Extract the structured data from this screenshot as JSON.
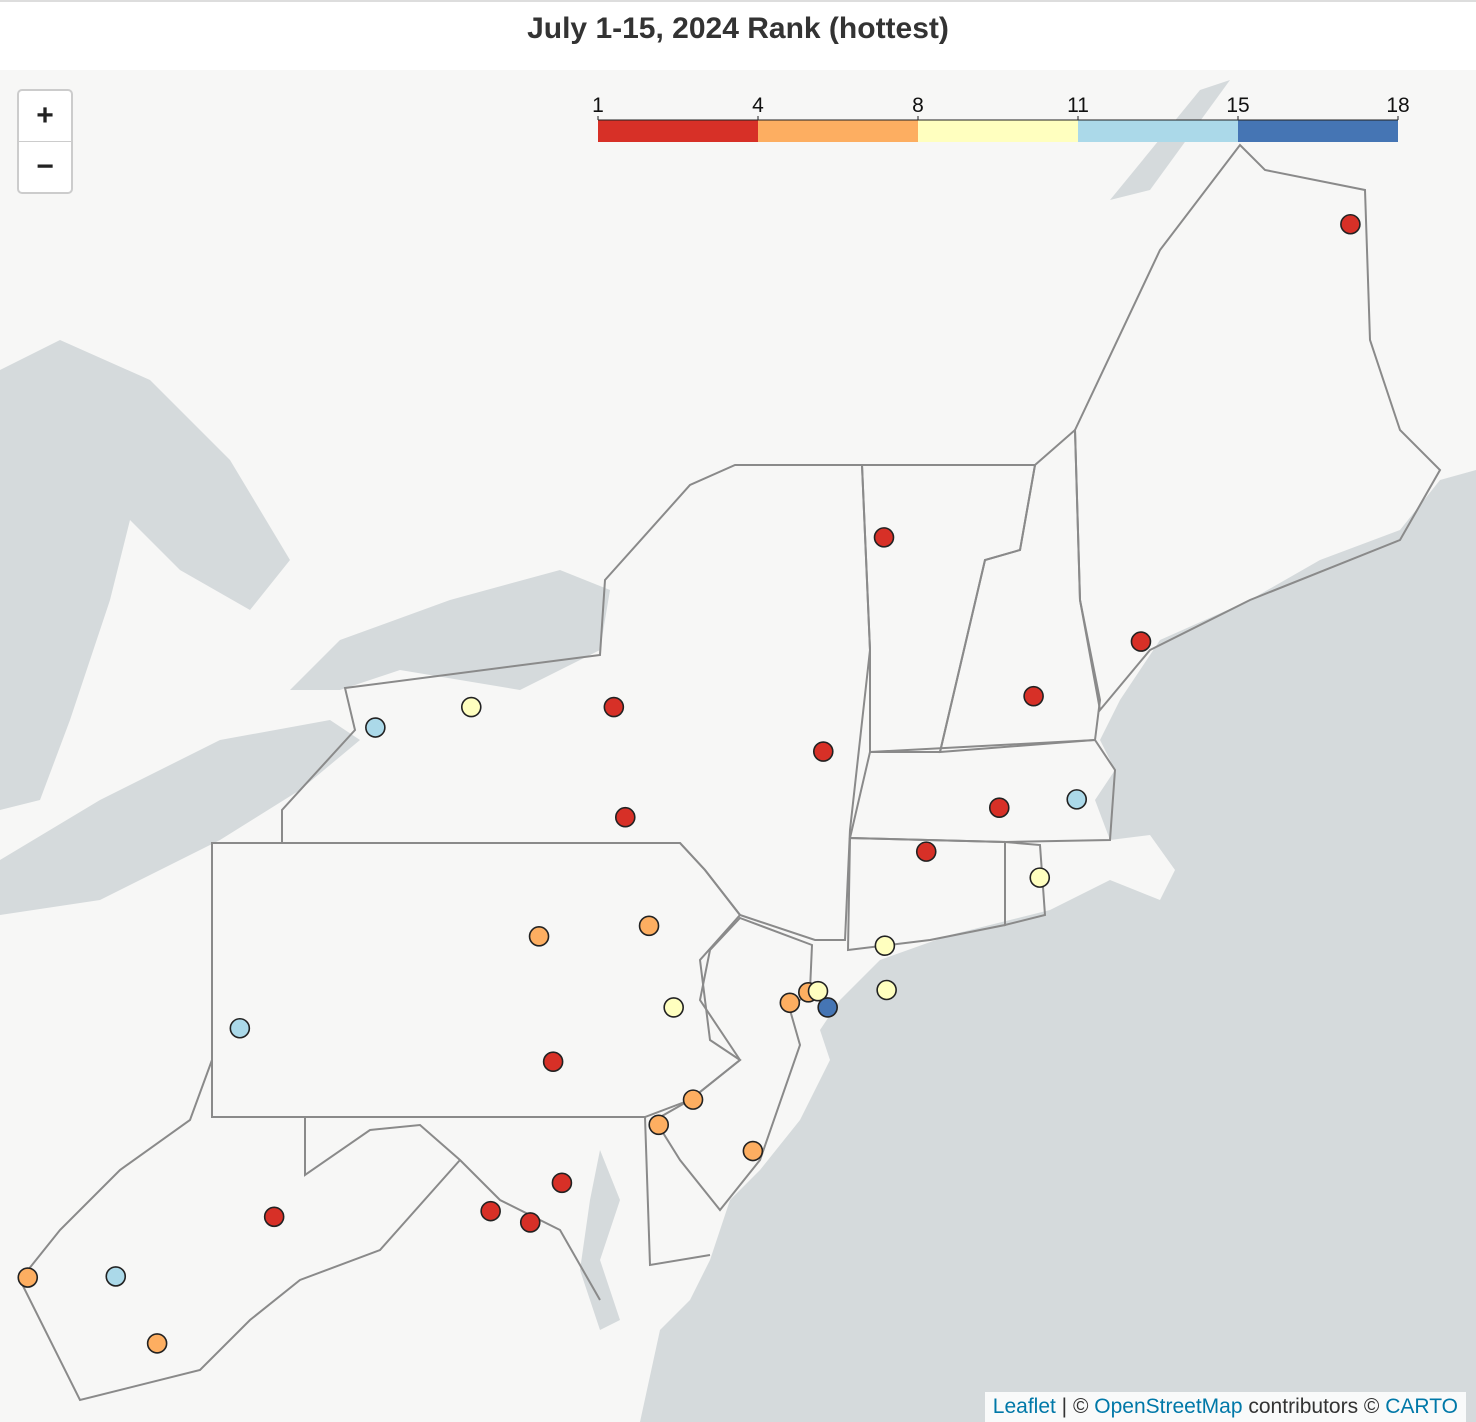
{
  "title": "July 1-15, 2024 Rank (hottest)",
  "zoom_controls": [
    "+",
    "−"
  ],
  "legend": {
    "ticks": [
      1,
      4,
      8,
      11,
      15,
      18
    ],
    "colors": [
      "#d73027",
      "#fdae61",
      "#ffffbf",
      "#abd9e9",
      "#4575b4"
    ]
  },
  "stations": [
    {
      "lon": -67.92,
      "lat": 47.04,
      "rank": 2
    },
    {
      "lon": -73.22,
      "lat": 44.56,
      "rank": 2
    },
    {
      "lon": -70.3,
      "lat": 43.71,
      "rank": 2
    },
    {
      "lon": -71.52,
      "lat": 43.26,
      "rank": 2
    },
    {
      "lon": -73.91,
      "lat": 42.8,
      "rank": 2
    },
    {
      "lon": -71.03,
      "lat": 42.4,
      "rank": 13
    },
    {
      "lon": -71.91,
      "lat": 42.33,
      "rank": 2
    },
    {
      "lon": -72.74,
      "lat": 41.96,
      "rank": 2
    },
    {
      "lon": -71.45,
      "lat": 41.74,
      "rank": 9
    },
    {
      "lon": -73.21,
      "lat": 41.16,
      "rank": 9
    },
    {
      "lon": -73.19,
      "lat": 40.78,
      "rank": 9
    },
    {
      "lon": -76.29,
      "lat": 43.17,
      "rank": 2
    },
    {
      "lon": -77.91,
      "lat": 43.17,
      "rank": 9
    },
    {
      "lon": -79.0,
      "lat": 43.0,
      "rank": 13
    },
    {
      "lon": -76.16,
      "lat": 42.25,
      "rank": 2
    },
    {
      "lon": -77.14,
      "lat": 41.24,
      "rank": 6
    },
    {
      "lon": -75.89,
      "lat": 41.33,
      "rank": 6
    },
    {
      "lon": -75.61,
      "lat": 40.63,
      "rank": 9
    },
    {
      "lon": -80.54,
      "lat": 40.45,
      "rank": 13
    },
    {
      "lon": -76.98,
      "lat": 40.16,
      "rank": 2
    },
    {
      "lon": -74.29,
      "lat": 40.67,
      "rank": 6
    },
    {
      "lon": -74.08,
      "lat": 40.76,
      "rank": 6
    },
    {
      "lon": -73.97,
      "lat": 40.77,
      "rank": 9
    },
    {
      "lon": -73.86,
      "lat": 40.63,
      "rank": 17
    },
    {
      "lon": -75.39,
      "lat": 39.83,
      "rank": 6
    },
    {
      "lon": -75.78,
      "lat": 39.61,
      "rank": 6
    },
    {
      "lon": -74.71,
      "lat": 39.38,
      "rank": 6
    },
    {
      "lon": -76.88,
      "lat": 39.1,
      "rank": 2
    },
    {
      "lon": -77.69,
      "lat": 38.85,
      "rank": 2
    },
    {
      "lon": -77.24,
      "lat": 38.75,
      "rank": 2
    },
    {
      "lon": -80.15,
      "lat": 38.8,
      "rank": 2
    },
    {
      "lon": -81.95,
      "lat": 38.27,
      "rank": 13
    },
    {
      "lon": -82.95,
      "lat": 38.26,
      "rank": 6
    },
    {
      "lon": -81.48,
      "lat": 37.67,
      "rank": 6
    }
  ],
  "attribution": [
    "Leaflet",
    " | © ",
    "OpenStreetMap",
    " contributors © ",
    "CARTO"
  ]
}
